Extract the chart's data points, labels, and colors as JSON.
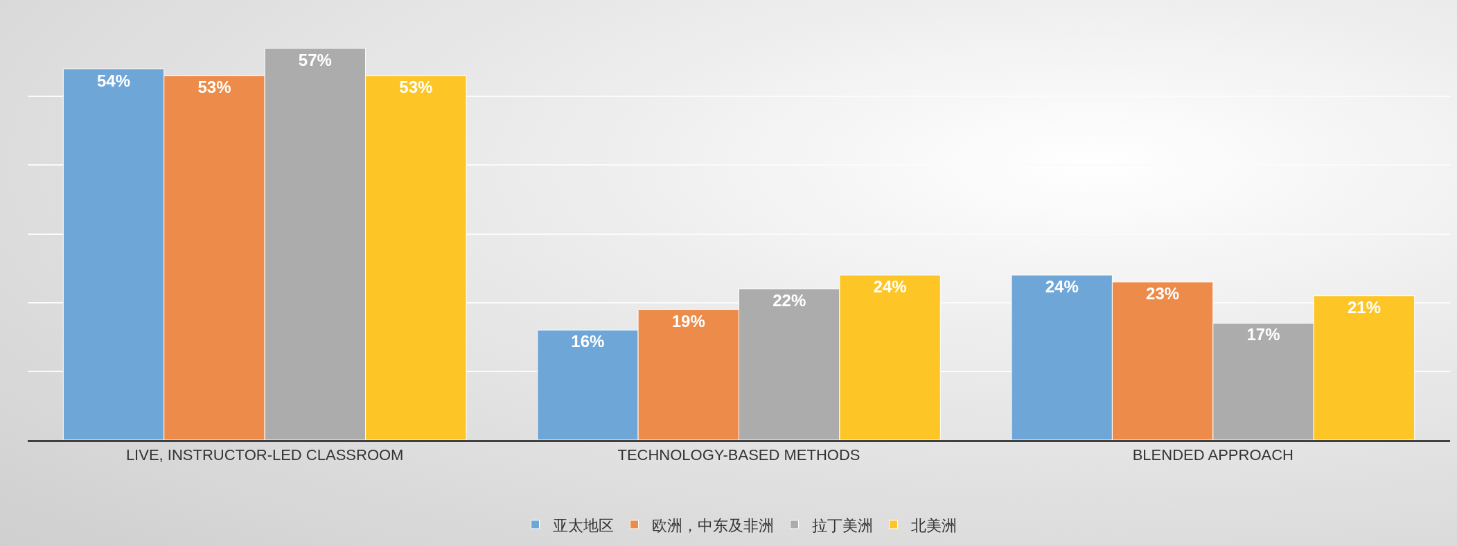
{
  "chart_data": {
    "type": "bar",
    "categories": [
      "LIVE, INSTRUCTOR-LED CLASSROOM",
      "TECHNOLOGY-BASED METHODS",
      "BLENDED APPROACH"
    ],
    "series": [
      {
        "name": "亚太地区",
        "color": "#6fa6d8",
        "values": [
          54,
          16,
          24
        ],
        "value_labels": [
          "54%",
          "16%",
          "24%"
        ]
      },
      {
        "name": "欧洲，中东及非洲",
        "color": "#ec8b4a",
        "values": [
          53,
          19,
          23
        ],
        "value_labels": [
          "53%",
          "19%",
          "23%"
        ]
      },
      {
        "name": "拉丁美洲",
        "color": "#acacac",
        "values": [
          57,
          22,
          17
        ],
        "value_labels": [
          "57%",
          "22%",
          "17%"
        ]
      },
      {
        "name": "北美洲",
        "color": "#fdc526",
        "values": [
          53,
          24,
          21
        ],
        "value_labels": [
          "53%",
          "24%",
          "21%"
        ]
      }
    ],
    "tick_labels": "x",
    "grid": "y",
    "legend": "bottom"
  }
}
